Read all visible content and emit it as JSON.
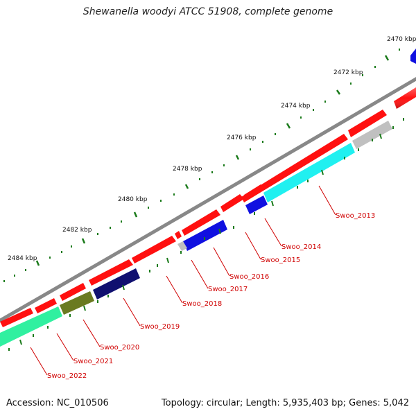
{
  "title": "Shewanella woodyi ATCC 51908, complete genome",
  "footer": {
    "accession": "Accession: NC_010506",
    "topology": "Topology: circular; Length: 5,935,403 bp; Genes: 5,042"
  },
  "colors": {
    "backbone": "#888888",
    "ticks": "#1a7a1a",
    "gene_red": "#ff1010",
    "gene_blue": "#1010e0",
    "gene_navy": "#101070",
    "gene_olive": "#6a7a20",
    "gene_gray": "#c0c0c0",
    "gene_cyan": "#20f0f0",
    "gene_mint": "#30f0a0",
    "label": "#d00000"
  },
  "kbp_labels": [
    "2470 kbp",
    "2472 kbp",
    "2474 kbp",
    "2476 kbp",
    "2478 kbp",
    "2480 kbp",
    "2482 kbp",
    "2484 kbp"
  ],
  "gene_labels": [
    "Swoo_2013",
    "Swoo_2014",
    "Swoo_2015",
    "Swoo_2016",
    "Swoo_2017",
    "Swoo_2018",
    "Swoo_2019",
    "Swoo_2020",
    "Swoo_2021",
    "Swoo_2022"
  ]
}
